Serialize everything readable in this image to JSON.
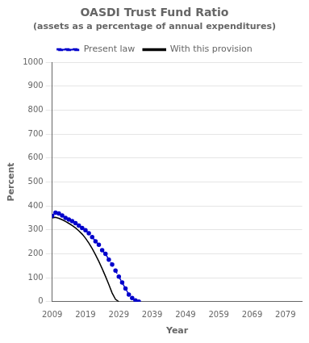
{
  "chart_data": {
    "type": "line",
    "title": "OASDI Trust Fund Ratio",
    "subtitle": "(assets as a percentage of annual expenditures)",
    "xlabel": "Year",
    "ylabel": "Percent",
    "xlim": [
      2009,
      2084
    ],
    "ylim": [
      0,
      1000
    ],
    "xticks": [
      2009,
      2019,
      2029,
      2039,
      2049,
      2059,
      2069,
      2079
    ],
    "yticks": [
      0,
      100,
      200,
      300,
      400,
      500,
      600,
      700,
      800,
      900,
      1000
    ],
    "grid": "y",
    "legend": "top",
    "series": [
      {
        "name": "Present law",
        "color": "#0000cc",
        "line_style": "dashed",
        "marker": "dot",
        "x": [
          2009,
          2010,
          2011,
          2012,
          2013,
          2014,
          2015,
          2016,
          2017,
          2018,
          2019,
          2020,
          2021,
          2022,
          2023,
          2024,
          2025,
          2026,
          2027,
          2028,
          2029,
          2030,
          2031,
          2032,
          2033,
          2034,
          2035
        ],
        "values": [
          358,
          372,
          368,
          360,
          350,
          343,
          336,
          328,
          318,
          308,
          298,
          286,
          270,
          252,
          238,
          215,
          200,
          175,
          155,
          130,
          105,
          80,
          55,
          30,
          15,
          5,
          0
        ]
      },
      {
        "name": "With this provision",
        "color": "#000000",
        "line_style": "solid",
        "marker": "none",
        "x": [
          2009,
          2010,
          2011,
          2012,
          2013,
          2014,
          2015,
          2016,
          2017,
          2018,
          2019,
          2020,
          2021,
          2022,
          2023,
          2024,
          2025,
          2026,
          2027,
          2028,
          2029
        ],
        "values": [
          350,
          352,
          348,
          342,
          335,
          327,
          318,
          308,
          296,
          282,
          265,
          245,
          222,
          196,
          168,
          138,
          106,
          72,
          36,
          10,
          0
        ]
      }
    ]
  }
}
